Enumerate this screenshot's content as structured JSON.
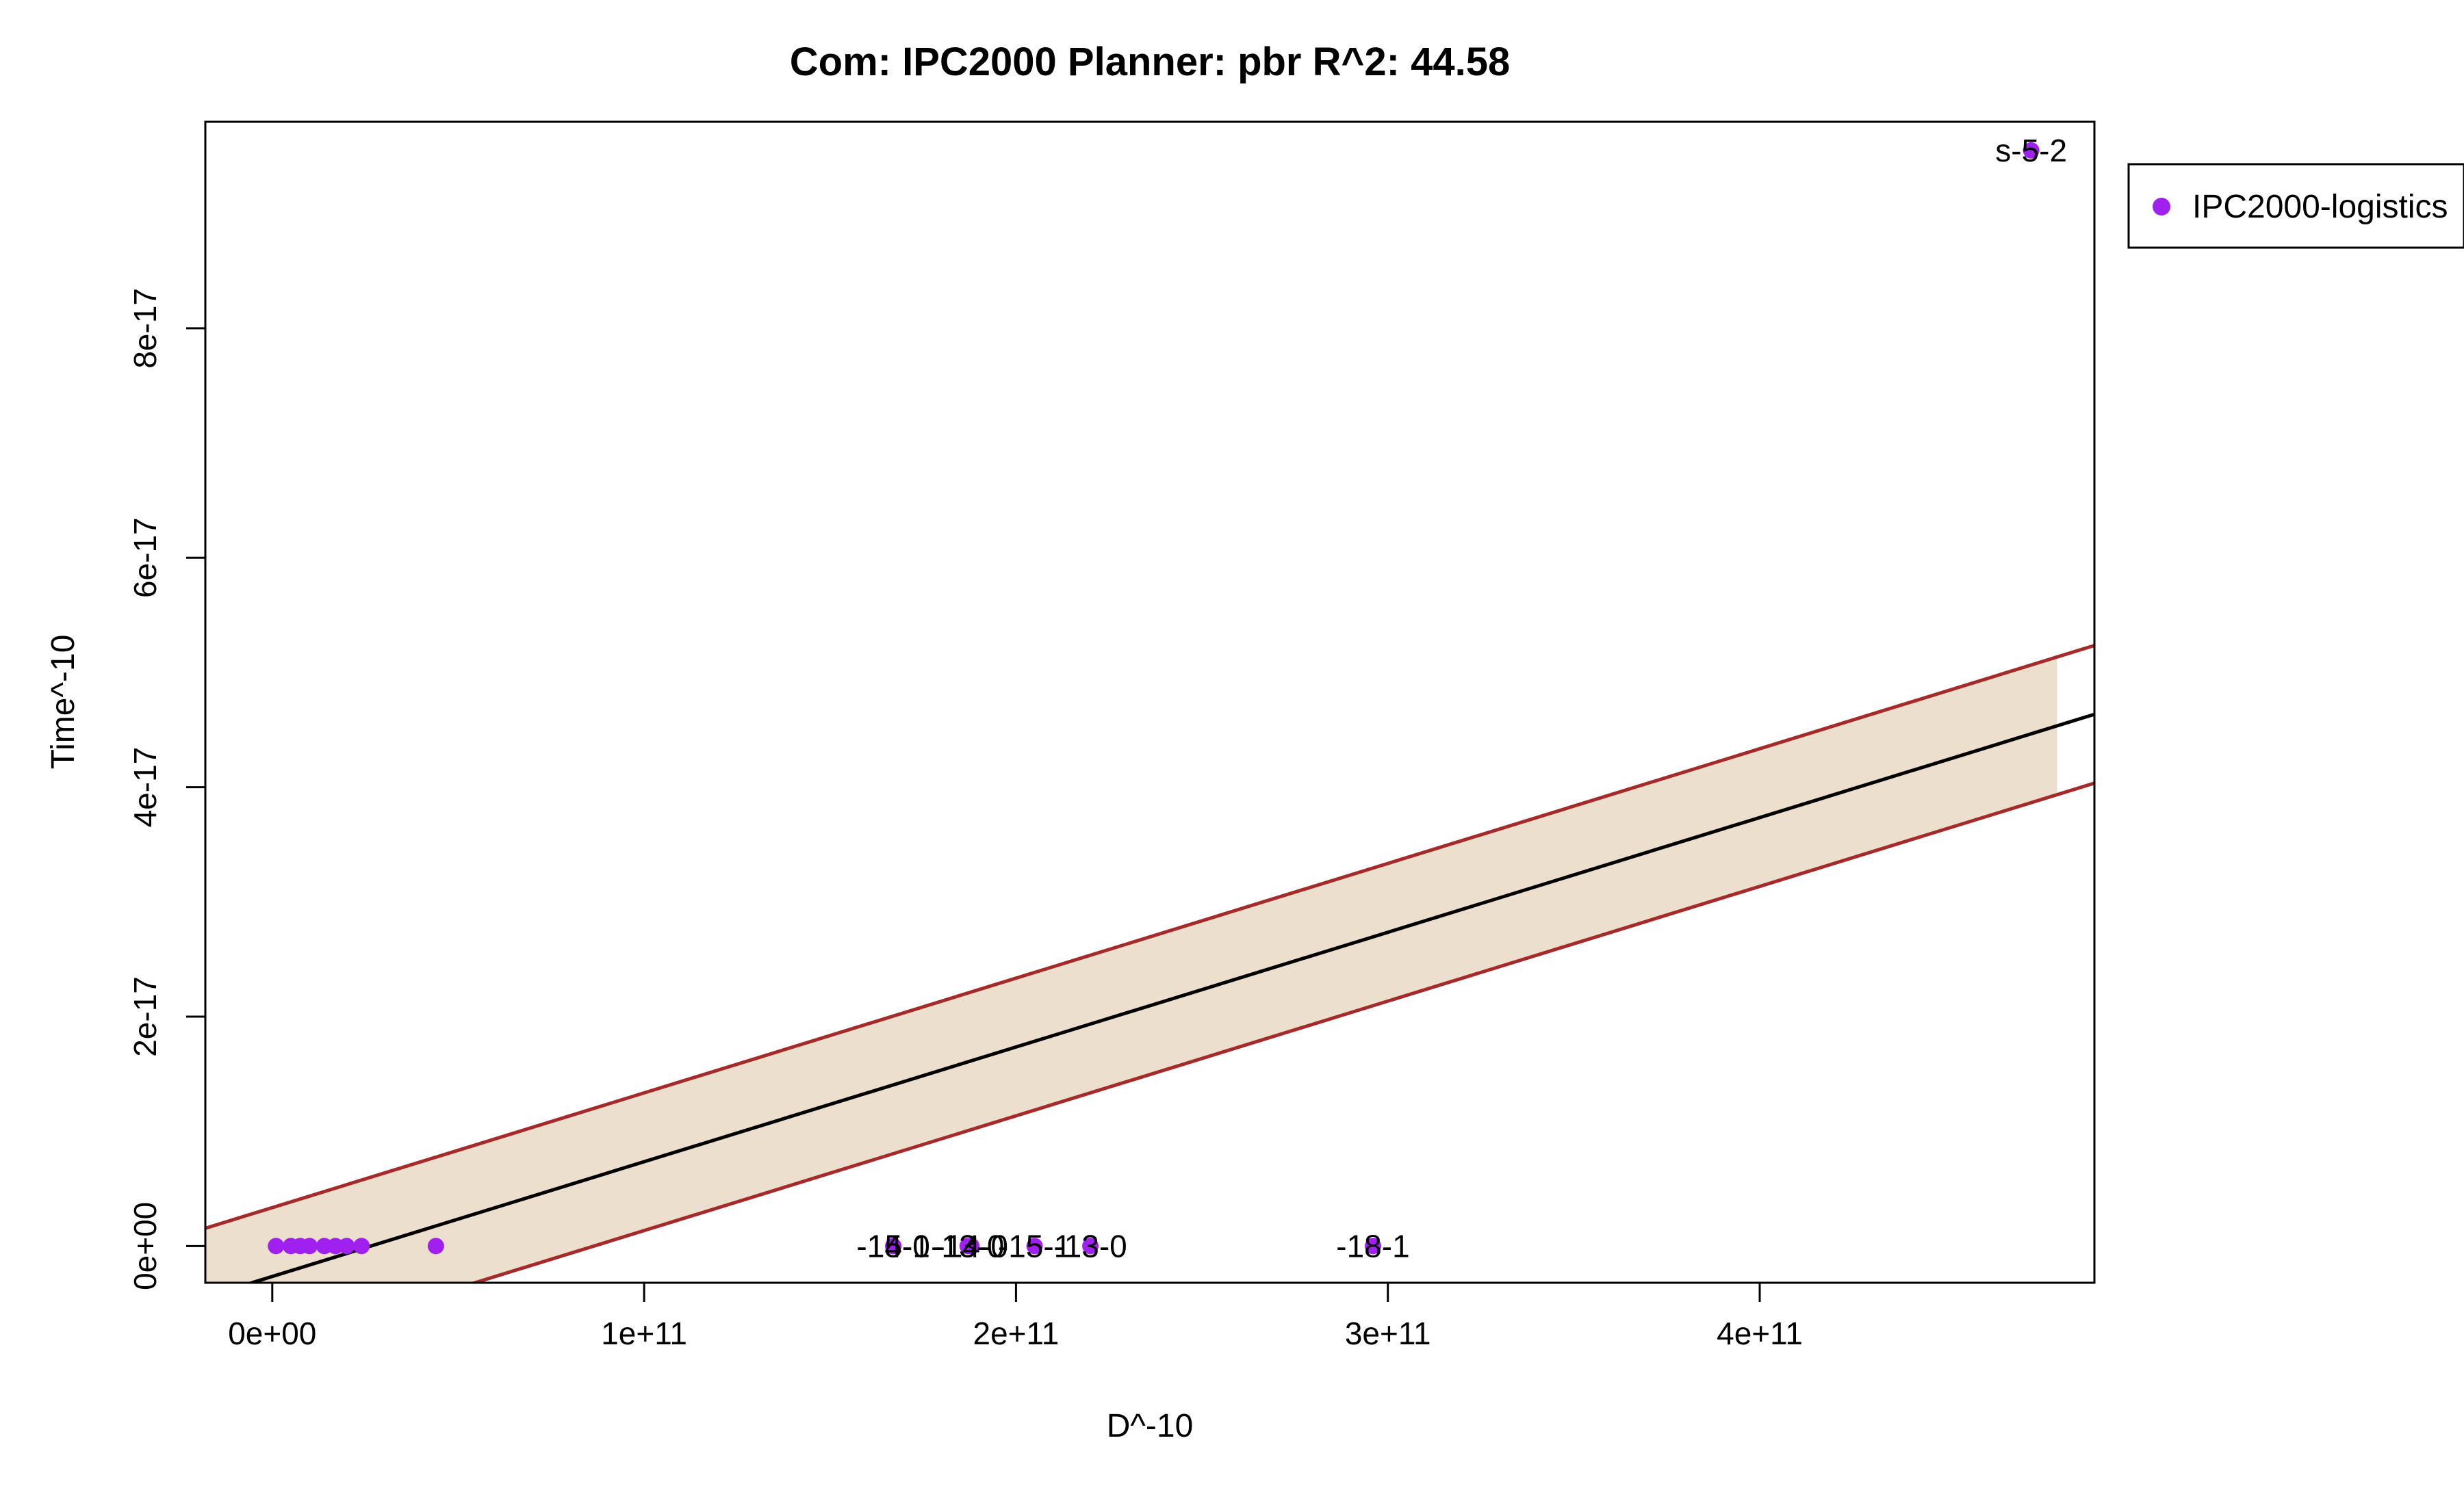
{
  "chart_data": {
    "type": "scatter",
    "title": "Com: IPC2000 Planner: pbr R^2: 44.58",
    "xlabel": "D^-10",
    "ylabel": "Time^-10",
    "xlim": [
      -18000000000.0,
      490000000000.0
    ],
    "ylim": [
      -3.2e-18,
      9.8e-17
    ],
    "x_ticks": [
      {
        "value": 0,
        "label": "0e+00"
      },
      {
        "value": 100000000000.0,
        "label": "1e+11"
      },
      {
        "value": 200000000000.0,
        "label": "2e+11"
      },
      {
        "value": 300000000000.0,
        "label": "3e+11"
      },
      {
        "value": 400000000000.0,
        "label": "4e+11"
      }
    ],
    "y_ticks": [
      {
        "value": 0,
        "label": "0e+00"
      },
      {
        "value": 2e-17,
        "label": "2e-17"
      },
      {
        "value": 4e-17,
        "label": "4e-17"
      },
      {
        "value": 6e-17,
        "label": "6e-17"
      },
      {
        "value": 8e-17,
        "label": "8e-17"
      }
    ],
    "fit": {
      "intercept": -2.65e-18,
      "slope": 1e-28
    },
    "interval": {
      "offset": 6e-18,
      "band_x_end": 480000000000.0
    },
    "colors": {
      "points": "#a020f0",
      "fit_line": "#000000",
      "interval_line": "#a52a2a",
      "band": "#eddfcd"
    },
    "series": [
      {
        "name": "IPC2000-logistics",
        "points": [
          {
            "x": 1000000000.0,
            "y": 0
          },
          {
            "x": 5000000000.0,
            "y": 0
          },
          {
            "x": 7500000000.0,
            "y": 0
          },
          {
            "x": 10000000000.0,
            "y": 0
          },
          {
            "x": 14000000000.0,
            "y": 0
          },
          {
            "x": 17000000000.0,
            "y": 0
          },
          {
            "x": 20000000000.0,
            "y": 0
          },
          {
            "x": 24000000000.0,
            "y": 0
          },
          {
            "x": 44000000000.0,
            "y": 0
          },
          {
            "x": 167000000000.0,
            "y": 0,
            "label": "-15-0"
          },
          {
            "x": 167000000000.0,
            "y": 0,
            "label": "-14-1"
          },
          {
            "x": 187000000000.0,
            "y": 0,
            "label": "-13-0"
          },
          {
            "x": 188000000000.0,
            "y": 0,
            "label": "-14-0"
          },
          {
            "x": 205000000000.0,
            "y": 0,
            "label": "-15-1"
          },
          {
            "x": 220000000000.0,
            "y": 0,
            "label": "-13-0"
          },
          {
            "x": 296000000000.0,
            "y": 0,
            "label": "-18-1"
          },
          {
            "x": 473000000000.0,
            "y": 9.55e-17,
            "label": "s-5-2"
          }
        ]
      }
    ],
    "legend": {
      "position": "top-right, outside plot",
      "entries": [
        "IPC2000-logistics"
      ]
    }
  }
}
